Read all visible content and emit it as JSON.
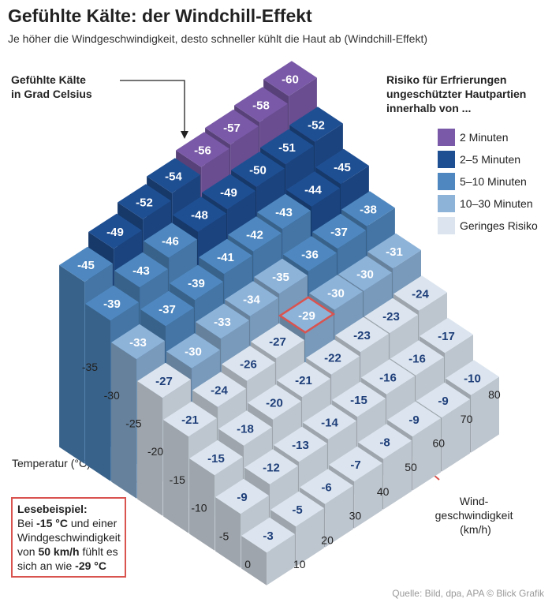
{
  "chart_data": {
    "type": "block3d",
    "title": "Gefühlte Kälte: der Windchill-Effekt",
    "subtitle": "Je höher die Windgeschwindigkeit, desto schneller kühlt die Haut ab (Windchill-Effekt)",
    "value_label": [
      "Gefühlte Kälte",
      "in Grad Celsius"
    ],
    "x_label": "Temperatur (°C)",
    "y_label": [
      "Wind-",
      "geschwindigkeit",
      "(km/h)"
    ],
    "x": [
      0,
      -5,
      -10,
      -15,
      -20,
      -25,
      -30,
      -35
    ],
    "y": [
      10,
      20,
      30,
      40,
      50,
      60,
      70,
      80
    ],
    "values": [
      [
        -3,
        -5,
        -6,
        -7,
        -8,
        -9,
        -9,
        -10
      ],
      [
        -9,
        -12,
        -13,
        -14,
        -15,
        -16,
        -16,
        -17
      ],
      [
        -15,
        -18,
        -20,
        -21,
        -22,
        -23,
        -23,
        -24
      ],
      [
        -21,
        -24,
        -26,
        -27,
        -29,
        -30,
        -30,
        -31
      ],
      [
        -27,
        -30,
        -33,
        -34,
        -35,
        -36,
        -37,
        -38
      ],
      [
        -33,
        -37,
        -39,
        -41,
        -42,
        -43,
        -44,
        -45
      ],
      [
        -39,
        -43,
        -46,
        -48,
        -49,
        -50,
        -51,
        -52
      ],
      [
        -45,
        -49,
        -52,
        -54,
        -56,
        -57,
        -58,
        -60
      ]
    ],
    "colors": [
      [
        "#dce5ef",
        "#dce5ef",
        "#dce5ef",
        "#dce5ef",
        "#dce5ef",
        "#dce5ef",
        "#dce5ef",
        "#dce5ef"
      ],
      [
        "#dce5ef",
        "#dce5ef",
        "#dce5ef",
        "#dce5ef",
        "#dce5ef",
        "#dce5ef",
        "#dce5ef",
        "#dce5ef"
      ],
      [
        "#dce5ef",
        "#dce5ef",
        "#dce5ef",
        "#dce5ef",
        "#dce5ef",
        "#dce5ef",
        "#dce5ef",
        "#dce5ef"
      ],
      [
        "#dce5ef",
        "#dce5ef",
        "#dce5ef",
        "#dce5ef",
        "#8db3d9",
        "#8db3d9",
        "#8db3d9",
        "#8db3d9"
      ],
      [
        "#dce5ef",
        "#8db3d9",
        "#8db3d9",
        "#8db3d9",
        "#8db3d9",
        "#4f88c0",
        "#4f88c0",
        "#4f88c0"
      ],
      [
        "#8db3d9",
        "#4f88c0",
        "#4f88c0",
        "#4f88c0",
        "#4f88c0",
        "#4f88c0",
        "#1f4f93",
        "#1f4f93"
      ],
      [
        "#4f88c0",
        "#4f88c0",
        "#4f88c0",
        "#1f4f93",
        "#1f4f93",
        "#1f4f93",
        "#1f4f93",
        "#1f4f93"
      ],
      [
        "#4f88c0",
        "#1f4f93",
        "#1f4f93",
        "#1f4f93",
        "#7a5aa8",
        "#7a5aa8",
        "#7a5aa8",
        "#7a5aa8"
      ]
    ],
    "highlight": {
      "x": -15,
      "y": 50,
      "color": "#d9534f"
    },
    "legend": {
      "title": [
        "Risiko für Erfrierungen",
        "ungeschützter Hautpartien",
        "innerhalb von ..."
      ],
      "items": [
        {
          "label": "2 Minuten",
          "color": "#7a5aa8"
        },
        {
          "label": "2–5 Minuten",
          "color": "#1f4f93"
        },
        {
          "label": "5–10 Minuten",
          "color": "#4f88c0"
        },
        {
          "label": "10–30 Minuten",
          "color": "#8db3d9"
        },
        {
          "label": "Geringes Risiko",
          "color": "#dce5ef"
        }
      ]
    },
    "annotation": {
      "title": "Lesebeispiel:",
      "text": [
        "Bei ",
        "-15 °C",
        " und einer Windgeschwindigkeit von ",
        "50 km/h",
        " fühlt es sich an wie ",
        "-29 °C"
      ]
    },
    "source": "Quelle: Bild, dpa, APA  © Blick Grafik"
  }
}
